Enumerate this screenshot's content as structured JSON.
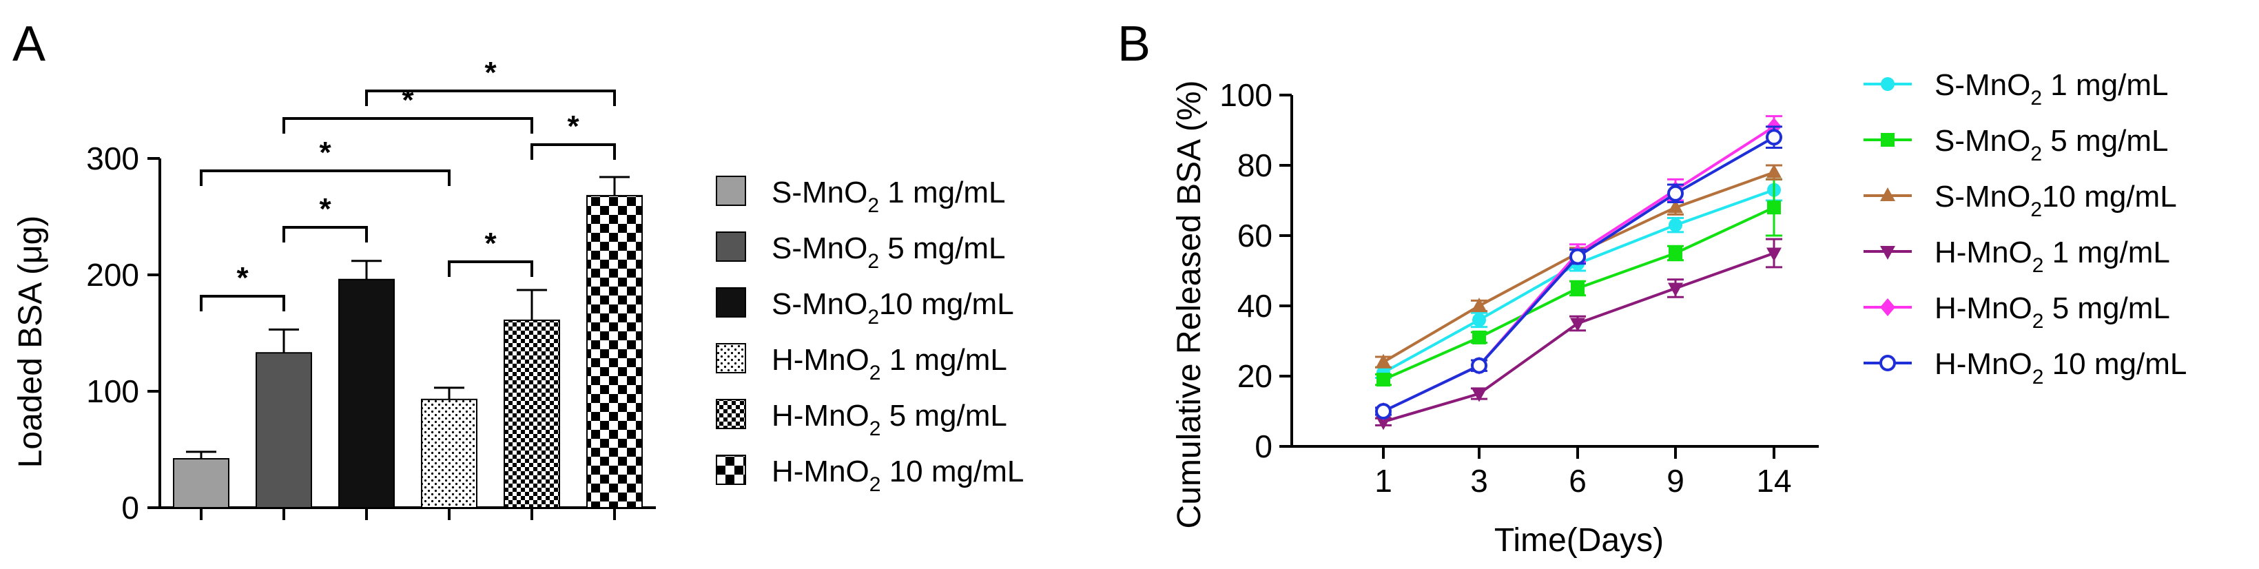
{
  "colors": {
    "axis": "#000000",
    "background": "#ffffff"
  },
  "chart_data": [
    {
      "type": "bar",
      "panel_label": "A",
      "title": "",
      "xlabel": "",
      "ylabel": "Loaded BSA (μg)",
      "ylim": [
        0,
        300
      ],
      "yticks": [
        "0",
        "100",
        "200",
        "300"
      ],
      "categories": [
        {
          "base": "S-MnO",
          "sub": "2",
          "rest": " 1 mg/mL",
          "fill": "#9e9e9e",
          "pattern": "solid"
        },
        {
          "base": "S-MnO",
          "sub": "2",
          "rest": " 5 mg/mL",
          "fill": "#555555",
          "pattern": "solid"
        },
        {
          "base": "S-MnO",
          "sub": "2",
          "rest": "10 mg/mL",
          "fill": "#111111",
          "pattern": "solid"
        },
        {
          "base": "H-MnO",
          "sub": "2",
          "rest": " 1 mg/mL",
          "fill": "#ffffff",
          "pattern": "dots"
        },
        {
          "base": "H-MnO",
          "sub": "2",
          "rest": " 5 mg/mL",
          "fill": "#ffffff",
          "pattern": "checker-small"
        },
        {
          "base": "H-MnO",
          "sub": "2",
          "rest": " 10 mg/mL",
          "fill": "#ffffff",
          "pattern": "checker-large"
        }
      ],
      "values": [
        42,
        133,
        196,
        93,
        161,
        268
      ],
      "errors": [
        6,
        20,
        16,
        10,
        26,
        16
      ],
      "significance": [
        {
          "from": 0,
          "to": 1,
          "label": "*"
        },
        {
          "from": 1,
          "to": 2,
          "label": "*"
        },
        {
          "from": 3,
          "to": 4,
          "label": "*"
        },
        {
          "from": 4,
          "to": 5,
          "label": "*"
        },
        {
          "from": 0,
          "to": 3,
          "label": "*"
        },
        {
          "from": 1,
          "to": 4,
          "label": "*"
        },
        {
          "from": 2,
          "to": 5,
          "label": "*"
        }
      ]
    },
    {
      "type": "line",
      "panel_label": "B",
      "title": "",
      "xlabel": "Time(Days)",
      "ylabel": "Cumulative Released BSA (%)",
      "x": [
        "1",
        "3",
        "6",
        "9",
        "14"
      ],
      "ylim": [
        0,
        100
      ],
      "yticks": [
        "0",
        "20",
        "40",
        "60",
        "80",
        "100"
      ],
      "series": [
        {
          "base": "S-MnO",
          "sub": "2",
          "rest": " 1 mg/mL",
          "color": "#22e6f0",
          "marker": "circle",
          "values": [
            21,
            36,
            52,
            63,
            73
          ],
          "errors": [
            1.5,
            2,
            2,
            2,
            3
          ]
        },
        {
          "base": "S-MnO",
          "sub": "2",
          "rest": " 5 mg/mL",
          "color": "#11e011",
          "marker": "square",
          "values": [
            19,
            31,
            45,
            55,
            68
          ],
          "errors": [
            1.5,
            1.5,
            2,
            2,
            8
          ]
        },
        {
          "base": "S-MnO",
          "sub": "2",
          "rest": "10 mg/mL",
          "color": "#b5713b",
          "marker": "triangle-up",
          "values": [
            24,
            40,
            55,
            68,
            78
          ],
          "errors": [
            1.5,
            1.5,
            1.5,
            2,
            2
          ]
        },
        {
          "base": "H-MnO",
          "sub": "2",
          "rest": " 1 mg/mL",
          "color": "#8b1a7a",
          "marker": "triangle-down",
          "values": [
            7,
            15,
            35,
            45,
            55
          ],
          "errors": [
            1,
            1.5,
            2,
            2.5,
            4
          ]
        },
        {
          "base": "H-MnO",
          "sub": "2",
          "rest": " 5 mg/mL",
          "color": "#ff33ee",
          "marker": "diamond",
          "values": [
            10,
            23,
            55,
            73,
            91
          ],
          "errors": [
            1,
            1.5,
            2.5,
            3,
            3
          ]
        },
        {
          "base": "H-MnO",
          "sub": "2",
          "rest": " 10 mg/mL",
          "color": "#1f2fd8",
          "marker": "open-circle",
          "values": [
            10,
            23,
            54,
            72,
            88
          ],
          "errors": [
            1,
            1.5,
            2,
            2.5,
            3
          ]
        }
      ]
    }
  ]
}
